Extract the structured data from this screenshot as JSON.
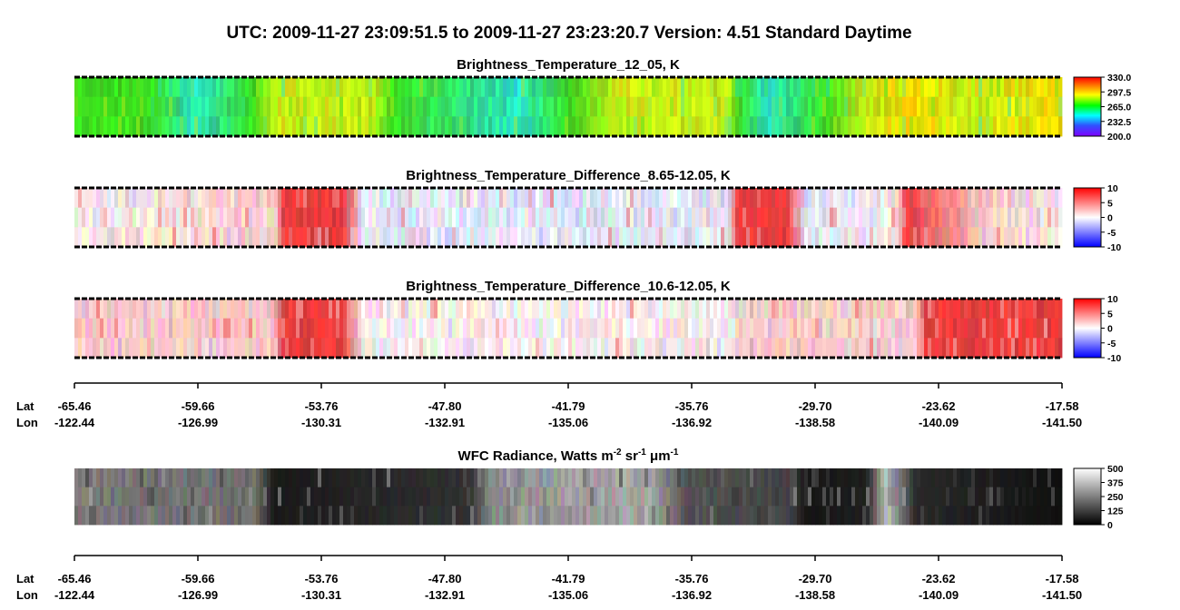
{
  "header": {
    "title": "UTC:  2009-11-27   23:09:51.5  to  2009-11-27   23:23:20.7    Version: 4.51  Standard Daytime"
  },
  "panels": [
    {
      "title": "Brightness_Temperature_12_05, K",
      "colorbar_ticks": [
        "330.0",
        "297.5",
        "265.0",
        "232.5",
        "200.0"
      ]
    },
    {
      "title": "Brightness_Temperature_Difference_8.65-12.05, K",
      "colorbar_ticks": [
        "10",
        "5",
        "0",
        "-5",
        "-10"
      ]
    },
    {
      "title": "Brightness_Temperature_Difference_10.6-12.05, K",
      "colorbar_ticks": [
        "10",
        "5",
        "0",
        "-5",
        "-10"
      ]
    },
    {
      "title_parts": [
        "WFC Radiance, Watts m",
        "-2",
        " sr",
        "-1",
        " μm",
        "-1"
      ],
      "colorbar_ticks": [
        "500",
        "375",
        "250",
        "125",
        "0"
      ]
    }
  ],
  "axis": {
    "lat_label": "Lat",
    "lon_label": "Lon",
    "lat": [
      "-65.46",
      "-59.66",
      "-53.76",
      "-47.80",
      "-41.79",
      "-35.76",
      "-29.70",
      "-23.62",
      "-17.58"
    ],
    "lon": [
      "-122.44",
      "-126.99",
      "-130.31",
      "-132.91",
      "-135.06",
      "-136.92",
      "-138.58",
      "-140.09",
      "-141.50"
    ]
  }
}
